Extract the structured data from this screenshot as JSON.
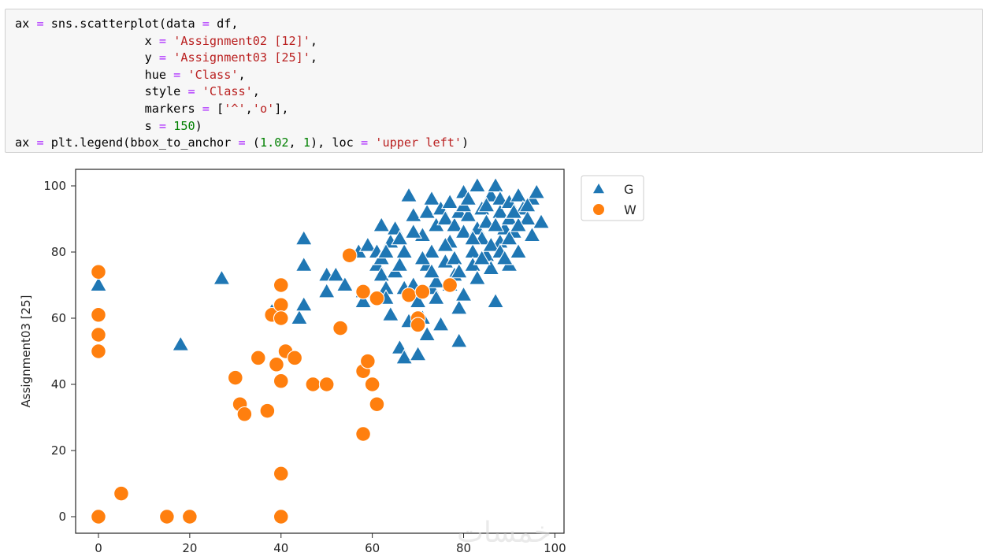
{
  "code": {
    "lines": [
      [
        [
          "t",
          "ax "
        ],
        [
          "o",
          "="
        ],
        [
          "t",
          " sns.scatterplot(data "
        ],
        [
          "o",
          "="
        ],
        [
          "t",
          " df,"
        ]
      ],
      [
        [
          "t",
          "                  x "
        ],
        [
          "o",
          "="
        ],
        [
          "t",
          " "
        ],
        [
          "s",
          "'Assignment02 [12]'"
        ],
        [
          "t",
          ","
        ]
      ],
      [
        [
          "t",
          "                  y "
        ],
        [
          "o",
          "="
        ],
        [
          "t",
          " "
        ],
        [
          "s",
          "'Assignment03 [25]'"
        ],
        [
          "t",
          ","
        ]
      ],
      [
        [
          "t",
          "                  hue "
        ],
        [
          "o",
          "="
        ],
        [
          "t",
          " "
        ],
        [
          "s",
          "'Class'"
        ],
        [
          "t",
          ","
        ]
      ],
      [
        [
          "t",
          "                  style "
        ],
        [
          "o",
          "="
        ],
        [
          "t",
          " "
        ],
        [
          "s",
          "'Class'"
        ],
        [
          "t",
          ","
        ]
      ],
      [
        [
          "t",
          "                  markers "
        ],
        [
          "o",
          "="
        ],
        [
          "t",
          " ["
        ],
        [
          "s",
          "'^'"
        ],
        [
          "t",
          ","
        ],
        [
          "s",
          "'o'"
        ],
        [
          "t",
          "],"
        ]
      ],
      [
        [
          "t",
          "                  s "
        ],
        [
          "o",
          "="
        ],
        [
          "t",
          " "
        ],
        [
          "n",
          "150"
        ],
        [
          "t",
          ")"
        ]
      ],
      [
        [
          "t",
          "ax "
        ],
        [
          "o",
          "="
        ],
        [
          "t",
          " plt.legend(bbox_to_anchor "
        ],
        [
          "o",
          "="
        ],
        [
          "t",
          " ("
        ],
        [
          "n",
          "1.02"
        ],
        [
          "t",
          ", "
        ],
        [
          "n",
          "1"
        ],
        [
          "t",
          "), loc "
        ],
        [
          "o",
          "="
        ],
        [
          "t",
          " "
        ],
        [
          "s",
          "'upper left'"
        ],
        [
          "t",
          ")"
        ]
      ]
    ]
  },
  "watermark": "خمسات",
  "chart_data": {
    "type": "scatter",
    "xlabel": "",
    "ylabel": "Assignment03 [25]",
    "xlim": [
      -5,
      102
    ],
    "ylim": [
      -5,
      105
    ],
    "xticks": [
      0,
      20,
      40,
      60,
      80,
      100
    ],
    "yticks": [
      0,
      20,
      40,
      60,
      80,
      100
    ],
    "legend_placement": "outside-upper-left",
    "grid": false,
    "series": [
      {
        "name": "G",
        "marker": "triangle",
        "color": "#1f77b4",
        "points": [
          [
            0,
            70
          ],
          [
            18,
            52
          ],
          [
            27,
            72
          ],
          [
            38,
            62
          ],
          [
            39,
            61
          ],
          [
            44,
            60
          ],
          [
            45,
            64
          ],
          [
            45,
            76
          ],
          [
            45,
            84
          ],
          [
            50,
            73
          ],
          [
            50,
            68
          ],
          [
            52,
            73
          ],
          [
            54,
            70
          ],
          [
            57,
            80
          ],
          [
            58,
            68
          ],
          [
            58,
            65
          ],
          [
            59,
            82
          ],
          [
            61,
            80
          ],
          [
            61,
            76
          ],
          [
            62,
            88
          ],
          [
            62,
            78
          ],
          [
            62,
            73
          ],
          [
            63,
            69
          ],
          [
            63,
            66
          ],
          [
            64,
            83
          ],
          [
            64,
            61
          ],
          [
            65,
            87
          ],
          [
            65,
            74
          ],
          [
            66,
            76
          ],
          [
            66,
            51
          ],
          [
            67,
            48
          ],
          [
            67,
            69
          ],
          [
            67,
            80
          ],
          [
            68,
            97
          ],
          [
            68,
            59
          ],
          [
            69,
            91
          ],
          [
            69,
            70
          ],
          [
            70,
            49
          ],
          [
            70,
            65
          ],
          [
            71,
            85
          ],
          [
            72,
            92
          ],
          [
            72,
            76
          ],
          [
            72,
            55
          ],
          [
            73,
            96
          ],
          [
            73,
            80
          ],
          [
            73,
            69
          ],
          [
            74,
            88
          ],
          [
            74,
            71
          ],
          [
            75,
            93
          ],
          [
            75,
            58
          ],
          [
            76,
            90
          ],
          [
            76,
            77
          ],
          [
            77,
            95
          ],
          [
            77,
            83
          ],
          [
            78,
            88
          ],
          [
            78,
            73
          ],
          [
            79,
            92
          ],
          [
            79,
            53
          ],
          [
            79,
            63
          ],
          [
            80,
            98
          ],
          [
            80,
            86
          ],
          [
            80,
            67
          ],
          [
            81,
            91
          ],
          [
            82,
            80
          ],
          [
            82,
            76
          ],
          [
            83,
            100
          ],
          [
            83,
            87
          ],
          [
            84,
            93
          ],
          [
            84,
            84
          ],
          [
            85,
            79
          ],
          [
            85,
            89
          ],
          [
            86,
            97
          ],
          [
            86,
            75
          ],
          [
            87,
            100
          ],
          [
            87,
            65
          ],
          [
            88,
            92
          ],
          [
            88,
            83
          ],
          [
            88,
            96
          ],
          [
            89,
            87
          ],
          [
            90,
            95
          ],
          [
            90,
            76
          ],
          [
            90,
            90
          ],
          [
            91,
            86
          ],
          [
            92,
            97
          ],
          [
            92,
            80
          ],
          [
            93,
            93
          ],
          [
            94,
            90
          ],
          [
            95,
            96
          ],
          [
            95,
            85
          ],
          [
            96,
            98
          ],
          [
            97,
            89
          ],
          [
            71,
            60
          ],
          [
            74,
            66
          ],
          [
            76,
            82
          ],
          [
            78,
            78
          ],
          [
            80,
            94
          ],
          [
            82,
            84
          ],
          [
            84,
            78
          ],
          [
            86,
            82
          ],
          [
            88,
            80
          ],
          [
            90,
            84
          ],
          [
            92,
            88
          ],
          [
            94,
            94
          ],
          [
            77,
            70
          ],
          [
            79,
            74
          ],
          [
            81,
            96
          ],
          [
            83,
            72
          ],
          [
            85,
            94
          ],
          [
            87,
            88
          ],
          [
            89,
            78
          ],
          [
            91,
            92
          ],
          [
            63,
            80
          ],
          [
            66,
            84
          ],
          [
            69,
            86
          ],
          [
            71,
            78
          ],
          [
            73,
            74
          ]
        ]
      },
      {
        "name": "W",
        "marker": "circle",
        "color": "#ff7f0e",
        "points": [
          [
            0,
            74
          ],
          [
            0,
            61
          ],
          [
            0,
            55
          ],
          [
            0,
            50
          ],
          [
            0,
            0
          ],
          [
            5,
            7
          ],
          [
            15,
            0
          ],
          [
            20,
            0
          ],
          [
            30,
            42
          ],
          [
            31,
            34
          ],
          [
            32,
            31
          ],
          [
            35,
            48
          ],
          [
            37,
            32
          ],
          [
            38,
            61
          ],
          [
            39,
            46
          ],
          [
            40,
            70
          ],
          [
            40,
            64
          ],
          [
            40,
            60
          ],
          [
            40,
            41
          ],
          [
            40,
            13
          ],
          [
            40,
            0
          ],
          [
            41,
            50
          ],
          [
            43,
            48
          ],
          [
            47,
            40
          ],
          [
            50,
            40
          ],
          [
            53,
            57
          ],
          [
            55,
            79
          ],
          [
            58,
            68
          ],
          [
            58,
            44
          ],
          [
            58,
            25
          ],
          [
            59,
            47
          ],
          [
            60,
            40
          ],
          [
            61,
            66
          ],
          [
            61,
            34
          ],
          [
            68,
            67
          ],
          [
            70,
            60
          ],
          [
            70,
            58
          ],
          [
            71,
            68
          ],
          [
            77,
            70
          ]
        ]
      }
    ]
  }
}
